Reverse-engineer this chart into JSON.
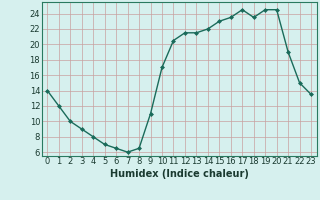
{
  "x": [
    0,
    1,
    2,
    3,
    4,
    5,
    6,
    7,
    8,
    9,
    10,
    11,
    12,
    13,
    14,
    15,
    16,
    17,
    18,
    19,
    20,
    21,
    22,
    23
  ],
  "y": [
    14,
    12,
    10,
    9,
    8,
    7,
    6.5,
    6,
    6.5,
    11,
    17,
    20.5,
    21.5,
    21.5,
    22,
    23,
    23.5,
    24.5,
    23.5,
    24.5,
    24.5,
    19,
    15,
    13.5
  ],
  "line_color": "#1a6b5a",
  "marker": "D",
  "marker_size": 2.0,
  "bg_color": "#d6f0ee",
  "grid_color": "#c8a0a0",
  "xlabel": "Humidex (Indice chaleur)",
  "ylim": [
    5.5,
    25.5
  ],
  "xlim": [
    -0.5,
    23.5
  ],
  "yticks": [
    6,
    8,
    10,
    12,
    14,
    16,
    18,
    20,
    22,
    24
  ],
  "xtick_labels": [
    "0",
    "1",
    "2",
    "3",
    "4",
    "5",
    "6",
    "7",
    "8",
    "9",
    "10",
    "11",
    "12",
    "13",
    "14",
    "15",
    "16",
    "17",
    "18",
    "19",
    "20",
    "21",
    "22",
    "23"
  ],
  "xlabel_fontsize": 7,
  "tick_fontsize": 6,
  "line_width": 1.0,
  "spine_color": "#2a7a60"
}
